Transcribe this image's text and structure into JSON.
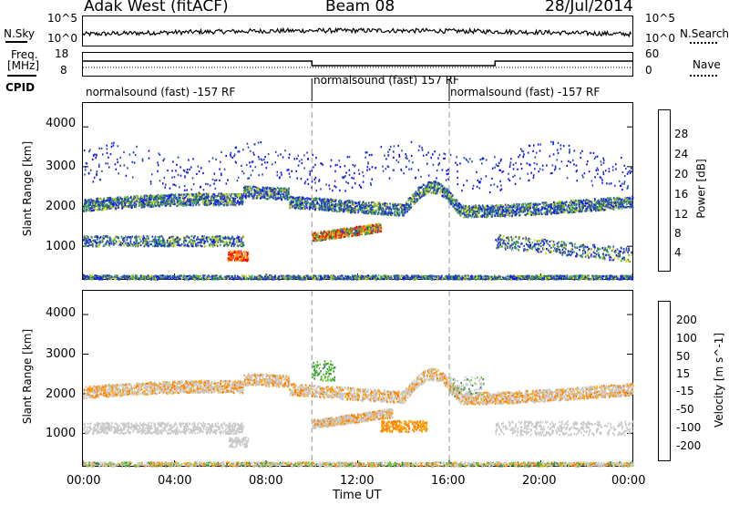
{
  "header": {
    "station": "Adak West (fitACF)",
    "beam": "Beam 08",
    "date": "28/Jul/2014"
  },
  "nsky": {
    "left_label": "N.Sky",
    "left_ticks": [
      "10^5",
      "10^0"
    ],
    "right_ticks": [
      "10^5",
      "10^0"
    ],
    "right_label": "N.Search"
  },
  "freq": {
    "left_label_1": "Freq.",
    "left_label_2": "[MHz]",
    "left_ticks": [
      "18",
      "8"
    ],
    "right_ticks": [
      "60",
      "0"
    ],
    "right_label": "Nave"
  },
  "cpid": {
    "label": "CPID",
    "segments": [
      {
        "text": "normalsound (fast) -157 RF",
        "start_hour": 0,
        "end_hour": 10
      },
      {
        "text": "normalsound (fast) 157 RF",
        "start_hour": 10,
        "end_hour": 16
      },
      {
        "text": "normalsound (fast) -157 RF",
        "start_hour": 16,
        "end_hour": 24
      }
    ]
  },
  "time_axis": {
    "label": "Time UT",
    "ticks": [
      "00:00",
      "04:00",
      "08:00",
      "12:00",
      "16:00",
      "20:00",
      "00:00"
    ],
    "range_hours": [
      0,
      24
    ]
  },
  "chart_data": [
    {
      "type": "heatmap",
      "title": "",
      "xlabel": "Time UT",
      "ylabel": "Slant Range [km]",
      "xlim": [
        0,
        24
      ],
      "ylim": [
        180,
        4600
      ],
      "yticks": [
        "1000",
        "2000",
        "3000",
        "4000"
      ],
      "colorbar": {
        "label": "Power [dB]",
        "ticks": [
          "4",
          "8",
          "12",
          "16",
          "20",
          "24",
          "28"
        ],
        "colors": [
          "#1010ff",
          "#2a4bb5",
          "#2d7d5a",
          "#4cb44c",
          "#d6d600",
          "#ff9a00",
          "#ff5a00",
          "#ff0000"
        ]
      },
      "features": [
        {
          "name": "far band",
          "start_hour": 0,
          "end_hour": 24,
          "range_km_start": 2050,
          "range_km_end": 2200
        },
        {
          "name": "near band",
          "start_hour": 0,
          "end_hour": 7,
          "range_km": 1150
        },
        {
          "name": "strong echo",
          "start_hour": 10,
          "end_hour": 13,
          "range_km": 1250
        }
      ]
    },
    {
      "type": "heatmap",
      "title": "",
      "xlabel": "Time UT",
      "ylabel": "Slant Range [km]",
      "xlim": [
        0,
        24
      ],
      "ylim": [
        180,
        4600
      ],
      "yticks": [
        "1000",
        "2000",
        "3000",
        "4000"
      ],
      "colorbar": {
        "label": "Velocity [m s^-1]",
        "ticks": [
          "200",
          "100",
          "50",
          "15",
          "-15",
          "-50",
          "-100",
          "-200"
        ],
        "colors": [
          "#2020c0",
          "#2a6ab0",
          "#2e8b3a",
          "#66cc33",
          "#c8c8c8",
          "#ffa500",
          "#ff7a00",
          "#ff4000",
          "#ff0000"
        ]
      }
    }
  ]
}
